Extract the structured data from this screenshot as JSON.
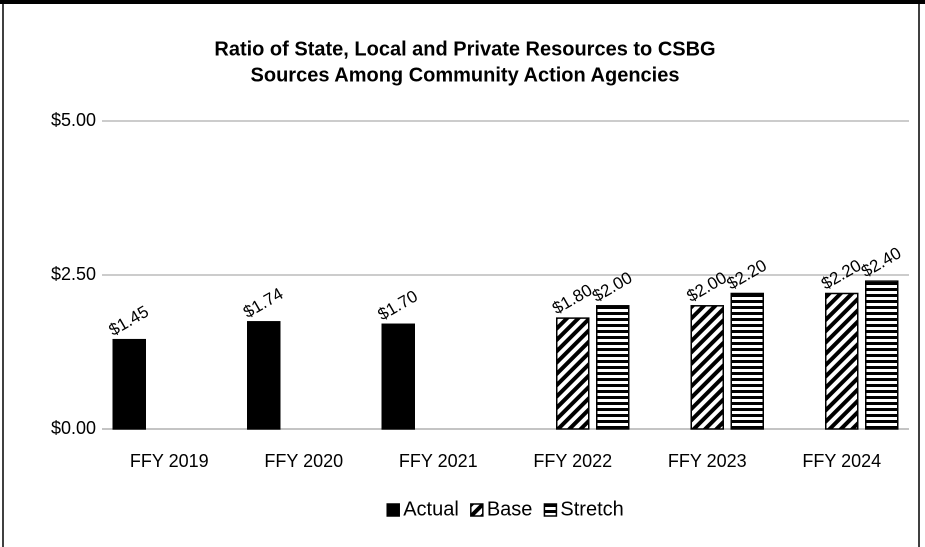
{
  "chart_data": {
    "type": "bar",
    "title": [
      "Ratio of State, Local and Private Resources to CSBG",
      "Sources Among Community Action Agencies"
    ],
    "categories": [
      "FFY 2019",
      "FFY 2020",
      "FFY 2021",
      "FFY 2022",
      "FFY 2023",
      "FFY 2024"
    ],
    "series": [
      {
        "name": "Actual",
        "color": "#000000",
        "hatch": "solid",
        "values": [
          1.45,
          1.74,
          1.7,
          null,
          null,
          null
        ],
        "value_labels": [
          "$1.45",
          "$1.74",
          "$1.70",
          null,
          null,
          null
        ]
      },
      {
        "name": "Base",
        "color": "#000000",
        "hatch": "diagonal",
        "values": [
          null,
          null,
          null,
          1.8,
          2.0,
          2.2
        ],
        "value_labels": [
          null,
          null,
          null,
          "$1.80",
          "$2.00",
          "$2.20"
        ]
      },
      {
        "name": "Stretch",
        "color": "#000000",
        "hatch": "horizontal",
        "values": [
          null,
          null,
          null,
          2.0,
          2.2,
          2.4
        ],
        "value_labels": [
          null,
          null,
          null,
          "$2.00",
          "$2.20",
          "$2.40"
        ]
      }
    ],
    "ylim": [
      0,
      5
    ],
    "yticks": [
      {
        "value": 0,
        "label": "$0.00"
      },
      {
        "value": 2.5,
        "label": "$2.50"
      },
      {
        "value": 5,
        "label": "$5.00"
      }
    ],
    "grid": true,
    "legend": "bottom"
  }
}
